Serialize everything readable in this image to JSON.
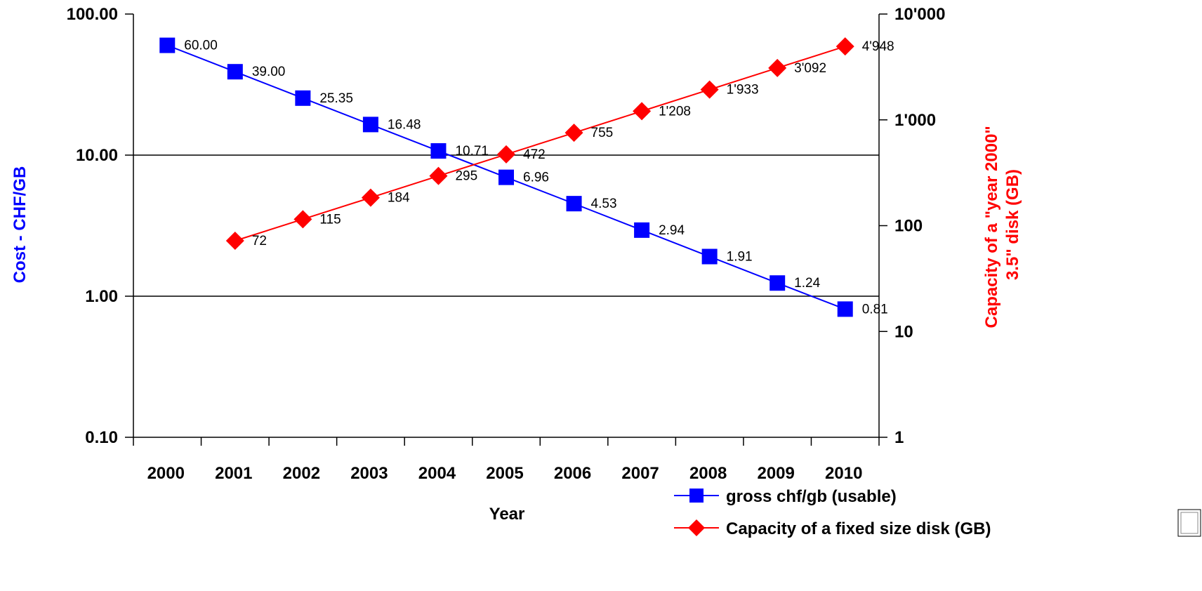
{
  "chart_data": {
    "type": "line",
    "categories": [
      "2000",
      "2001",
      "2002",
      "2003",
      "2004",
      "2005",
      "2006",
      "2007",
      "2008",
      "2009",
      "2010"
    ],
    "series": [
      {
        "name": "gross chf/gb (usable)",
        "axis": "left",
        "color": "#0000ff",
        "marker": "square",
        "values": [
          60.0,
          39.0,
          25.35,
          16.48,
          10.71,
          6.96,
          4.53,
          2.94,
          1.91,
          1.24,
          0.81
        ],
        "labels": [
          "60.00",
          "39.00",
          "25.35",
          "16.48",
          "10.71",
          "6.96",
          "4.53",
          "2.94",
          "1.91",
          "1.24",
          "0.81"
        ]
      },
      {
        "name": "Capacity of a fixed size disk (GB)",
        "axis": "right",
        "color": "#ff0000",
        "marker": "diamond",
        "values": [
          null,
          72,
          115,
          184,
          295,
          472,
          755,
          1208,
          1933,
          3092,
          4948
        ],
        "labels": [
          null,
          "72",
          "115",
          "184",
          "295",
          "472",
          "755",
          "1'208",
          "1'933",
          "3'092",
          "4'948"
        ]
      }
    ],
    "xlabel": "Year",
    "ylabel_left": "Cost - CHF/GB",
    "ylabel_left_color": "#0000ff",
    "ylabel_right_lines": [
      "Capacity of a \"year 2000\"",
      "3.5\" disk (GB)"
    ],
    "ylabel_right_color": "#ff0000",
    "yscale_left": "log",
    "ylim_left": [
      0.1,
      100
    ],
    "yticks_left": [
      "0.10",
      "1.00",
      "10.00",
      "100.00"
    ],
    "yscale_right": "log",
    "ylim_right": [
      1,
      10000
    ],
    "yticks_right": [
      "1",
      "10",
      "100",
      "1'000",
      "10'000"
    ],
    "grid": "horizontal",
    "legend_position": "bottom-right"
  }
}
